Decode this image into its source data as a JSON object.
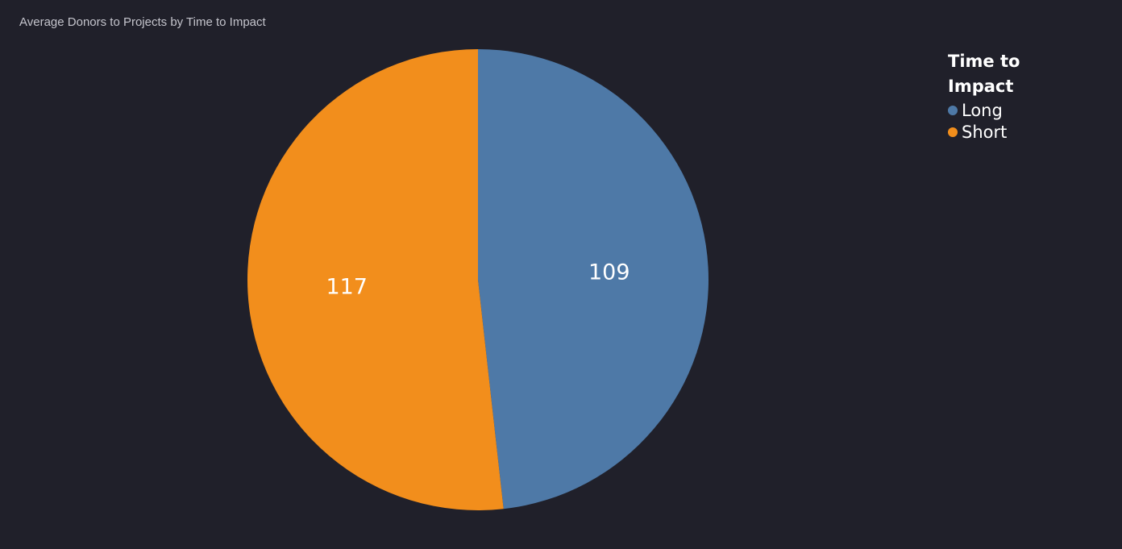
{
  "chart_data": {
    "type": "pie",
    "title": "Average Donors to Projects by Time to Impact",
    "legend": {
      "title": "Time to Impact",
      "placement": "top-right"
    },
    "slices": [
      {
        "label": "Long",
        "value": 109,
        "color": "#4e79a7"
      },
      {
        "label": "Short",
        "value": 117,
        "color": "#f28e1c"
      }
    ],
    "start_angle": "top",
    "direction": "clockwise"
  }
}
